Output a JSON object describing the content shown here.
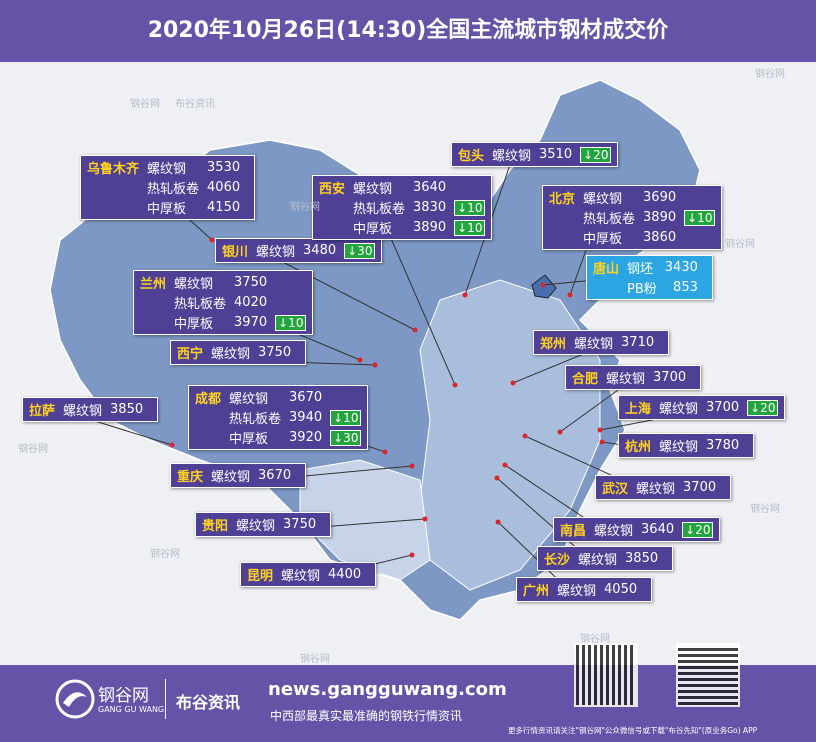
{
  "title": "2020年10月26日(14:30)全国主流城市钢材成交价",
  "watermark": {
    "cn": "钢谷网",
    "sub": "布谷资讯"
  },
  "cities": [
    {
      "name": "乌鲁木齐",
      "items": [
        {
          "product": "螺纹钢",
          "price": 3530
        },
        {
          "product": "热轧板卷",
          "price": 4060
        },
        {
          "product": "中厚板",
          "price": 4150
        }
      ]
    },
    {
      "name": "银川",
      "items": [
        {
          "product": "螺纹钢",
          "price": 3480,
          "change": "↓30"
        }
      ]
    },
    {
      "name": "兰州",
      "items": [
        {
          "product": "螺纹钢",
          "price": 3750
        },
        {
          "product": "热轧板卷",
          "price": 4020
        },
        {
          "product": "中厚板",
          "price": 3970,
          "change": "↓10"
        }
      ]
    },
    {
      "name": "西宁",
      "items": [
        {
          "product": "螺纹钢",
          "price": 3750
        }
      ]
    },
    {
      "name": "拉萨",
      "items": [
        {
          "product": "螺纹钢",
          "price": 3850
        }
      ]
    },
    {
      "name": "成都",
      "items": [
        {
          "product": "螺纹钢",
          "price": 3670
        },
        {
          "product": "热轧板卷",
          "price": 3940,
          "change": "↓10"
        },
        {
          "product": "中厚板",
          "price": 3920,
          "change": "↓30"
        }
      ]
    },
    {
      "name": "重庆",
      "items": [
        {
          "product": "螺纹钢",
          "price": 3670
        }
      ]
    },
    {
      "name": "贵阳",
      "items": [
        {
          "product": "螺纹钢",
          "price": 3750
        }
      ]
    },
    {
      "name": "昆明",
      "items": [
        {
          "product": "螺纹钢",
          "price": 4400
        }
      ]
    },
    {
      "name": "包头",
      "items": [
        {
          "product": "螺纹钢",
          "price": 3510,
          "change": "↓20"
        }
      ]
    },
    {
      "name": "西安",
      "items": [
        {
          "product": "螺纹钢",
          "price": 3640
        },
        {
          "product": "热轧板卷",
          "price": 3830,
          "change": "↓10"
        },
        {
          "product": "中厚板",
          "price": 3890,
          "change": "↓10"
        }
      ]
    },
    {
      "name": "北京",
      "items": [
        {
          "product": "螺纹钢",
          "price": 3690
        },
        {
          "product": "热轧板卷",
          "price": 3890,
          "change": "↓10"
        },
        {
          "product": "中厚板",
          "price": 3860
        }
      ]
    },
    {
      "name": "唐山",
      "items": [
        {
          "product": "钢坯",
          "price": 3430
        },
        {
          "product": "PB粉",
          "price": 853
        }
      ]
    },
    {
      "name": "郑州",
      "items": [
        {
          "product": "螺纹钢",
          "price": 3710
        }
      ]
    },
    {
      "name": "合肥",
      "items": [
        {
          "product": "螺纹钢",
          "price": 3700
        }
      ]
    },
    {
      "name": "上海",
      "items": [
        {
          "product": "螺纹钢",
          "price": 3700,
          "change": "↓20"
        }
      ]
    },
    {
      "name": "杭州",
      "items": [
        {
          "product": "螺纹钢",
          "price": 3780
        }
      ]
    },
    {
      "name": "武汉",
      "items": [
        {
          "product": "螺纹钢",
          "price": 3700
        }
      ]
    },
    {
      "name": "南昌",
      "items": [
        {
          "product": "螺纹钢",
          "price": 3640,
          "change": "↓20"
        }
      ]
    },
    {
      "name": "长沙",
      "items": [
        {
          "product": "螺纹钢",
          "price": 3850
        }
      ]
    },
    {
      "name": "广州",
      "items": [
        {
          "product": "螺纹钢",
          "price": 4050
        }
      ]
    }
  ],
  "footer": {
    "logo": "钢谷网",
    "logo_en": "GANG GU WANG",
    "brand": "布谷资讯",
    "url": "news.gangguwang.com",
    "slogan": "中西部最真实最准确的钢铁行情资讯",
    "note": "更多行情资讯请关注\"钢谷网\"公众微信号或下载\"布谷先知\"(原业务Go) APP"
  }
}
